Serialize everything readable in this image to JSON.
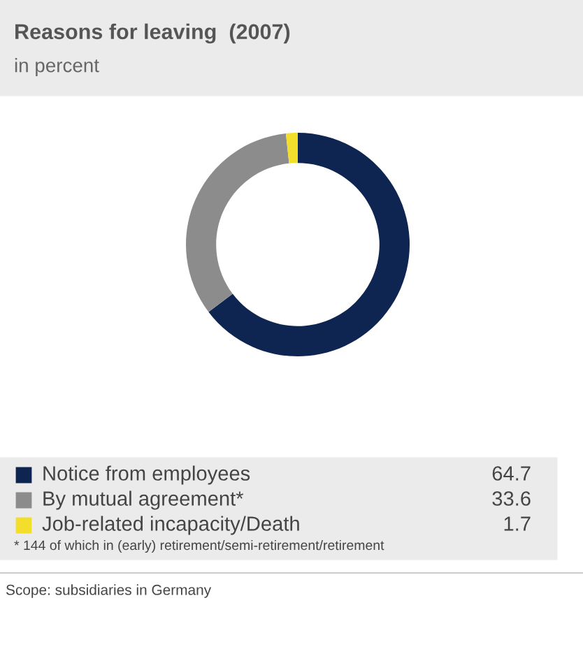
{
  "chart_data": {
    "type": "donut",
    "title": "Reasons for leaving  (2007)",
    "subtitle": "in percent",
    "categories": [
      "Notice from employees",
      "By mutual agreement*",
      "Job-related incapacity/Death"
    ],
    "values": [
      64.7,
      33.6,
      1.7
    ],
    "colors": [
      "#0d2550",
      "#8c8c8c",
      "#f3df2b"
    ],
    "data_labels": true,
    "legend": "bottom",
    "annotations": [
      "* 144 of which in (early) retirement/semi-retirement/retirement",
      "Scope: subsidiaries in Germany"
    ]
  }
}
